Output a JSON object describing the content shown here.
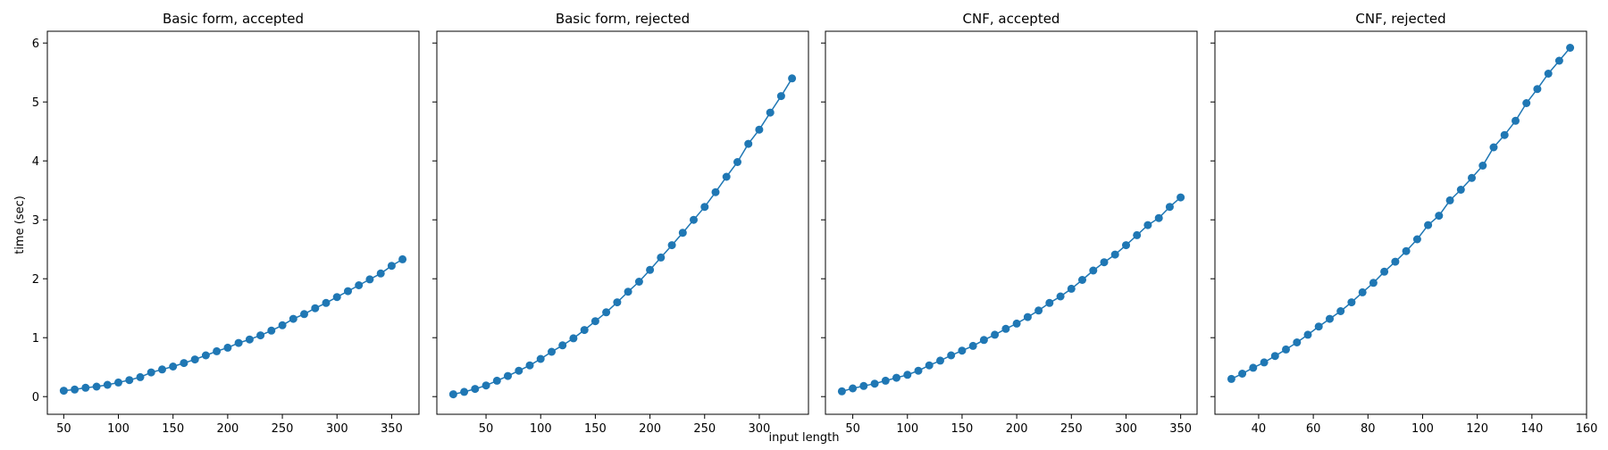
{
  "figure": {
    "ylabel": "time (sec)",
    "xlabel": "input length",
    "shared_y": true
  },
  "style": {
    "series_color": "#1f77b4",
    "axis_color": "#000000",
    "background": "#ffffff"
  },
  "chart_data": [
    {
      "type": "line",
      "title": "Basic form, accepted",
      "xlabel": "",
      "ylabel": "time (sec)",
      "xlim": [
        35,
        375
      ],
      "ylim": [
        -0.3,
        6.2
      ],
      "xticks": [
        50,
        100,
        150,
        200,
        250,
        300,
        350
      ],
      "yticks": [
        0,
        1,
        2,
        3,
        4,
        5,
        6
      ],
      "grid": false,
      "marker": "circle",
      "series": [
        {
          "x": [
            50,
            60,
            70,
            80,
            90,
            100,
            110,
            120,
            130,
            140,
            150,
            160,
            170,
            180,
            190,
            200,
            210,
            220,
            230,
            240,
            250,
            260,
            270,
            280,
            290,
            300,
            310,
            320,
            330,
            340,
            350,
            360
          ],
          "y": [
            0.1,
            0.12,
            0.15,
            0.17,
            0.2,
            0.24,
            0.28,
            0.33,
            0.41,
            0.46,
            0.51,
            0.57,
            0.63,
            0.7,
            0.77,
            0.83,
            0.91,
            0.97,
            1.04,
            1.12,
            1.21,
            1.32,
            1.4,
            1.5,
            1.59,
            1.69,
            1.79,
            1.89,
            1.99,
            2.09,
            2.22,
            2.33
          ]
        }
      ]
    },
    {
      "type": "line",
      "title": "Basic form, rejected",
      "xlabel": "",
      "ylabel": "",
      "xlim": [
        5,
        345
      ],
      "ylim": [
        -0.3,
        6.2
      ],
      "xticks": [
        50,
        100,
        150,
        200,
        250,
        300
      ],
      "yticks": [
        0,
        1,
        2,
        3,
        4,
        5,
        6
      ],
      "grid": false,
      "marker": "circle",
      "series": [
        {
          "x": [
            20,
            30,
            40,
            50,
            60,
            70,
            80,
            90,
            100,
            110,
            120,
            130,
            140,
            150,
            160,
            170,
            180,
            190,
            200,
            210,
            220,
            230,
            240,
            250,
            260,
            270,
            280,
            290,
            300,
            310,
            320,
            330
          ],
          "y": [
            0.04,
            0.08,
            0.13,
            0.19,
            0.27,
            0.35,
            0.44,
            0.53,
            0.64,
            0.76,
            0.87,
            0.99,
            1.13,
            1.28,
            1.43,
            1.6,
            1.78,
            1.95,
            2.15,
            2.36,
            2.57,
            2.78,
            3.0,
            3.22,
            3.47,
            3.73,
            3.98,
            4.29,
            4.53,
            4.82,
            5.1,
            5.4
          ]
        }
      ]
    },
    {
      "type": "line",
      "title": "CNF, accepted",
      "xlabel": "",
      "ylabel": "",
      "xlim": [
        25,
        365
      ],
      "ylim": [
        -0.3,
        6.2
      ],
      "xticks": [
        50,
        100,
        150,
        200,
        250,
        300,
        350
      ],
      "yticks": [
        0,
        1,
        2,
        3,
        4,
        5,
        6
      ],
      "grid": false,
      "marker": "circle",
      "series": [
        {
          "x": [
            40,
            50,
            60,
            70,
            80,
            90,
            100,
            110,
            120,
            130,
            140,
            150,
            160,
            170,
            180,
            190,
            200,
            210,
            220,
            230,
            240,
            250,
            260,
            270,
            280,
            290,
            300,
            310,
            320,
            330,
            340,
            350
          ],
          "y": [
            0.09,
            0.14,
            0.18,
            0.22,
            0.27,
            0.32,
            0.37,
            0.44,
            0.53,
            0.61,
            0.7,
            0.78,
            0.86,
            0.96,
            1.05,
            1.15,
            1.24,
            1.35,
            1.46,
            1.59,
            1.7,
            1.83,
            1.98,
            2.14,
            2.28,
            2.41,
            2.57,
            2.74,
            2.91,
            3.03,
            3.22,
            3.38
          ]
        }
      ]
    },
    {
      "type": "line",
      "title": "CNF, rejected",
      "xlabel": "",
      "ylabel": "",
      "xlim": [
        24,
        160
      ],
      "ylim": [
        -0.3,
        6.2
      ],
      "xticks": [
        40,
        60,
        80,
        100,
        120,
        140,
        160
      ],
      "yticks": [
        0,
        1,
        2,
        3,
        4,
        5,
        6
      ],
      "grid": false,
      "marker": "circle",
      "series": [
        {
          "x": [
            30,
            34,
            38,
            42,
            46,
            50,
            54,
            58,
            62,
            66,
            70,
            74,
            78,
            82,
            86,
            90,
            94,
            98,
            102,
            106,
            110,
            114,
            118,
            122,
            126,
            130,
            134,
            138,
            142,
            146,
            150,
            154
          ],
          "y": [
            0.3,
            0.39,
            0.49,
            0.58,
            0.69,
            0.8,
            0.92,
            1.05,
            1.19,
            1.32,
            1.45,
            1.6,
            1.77,
            1.93,
            2.12,
            2.29,
            2.47,
            2.67,
            2.91,
            3.07,
            3.33,
            3.51,
            3.71,
            3.92,
            4.23,
            4.44,
            4.68,
            4.98,
            5.22,
            5.48,
            5.7,
            5.92
          ]
        }
      ]
    }
  ]
}
